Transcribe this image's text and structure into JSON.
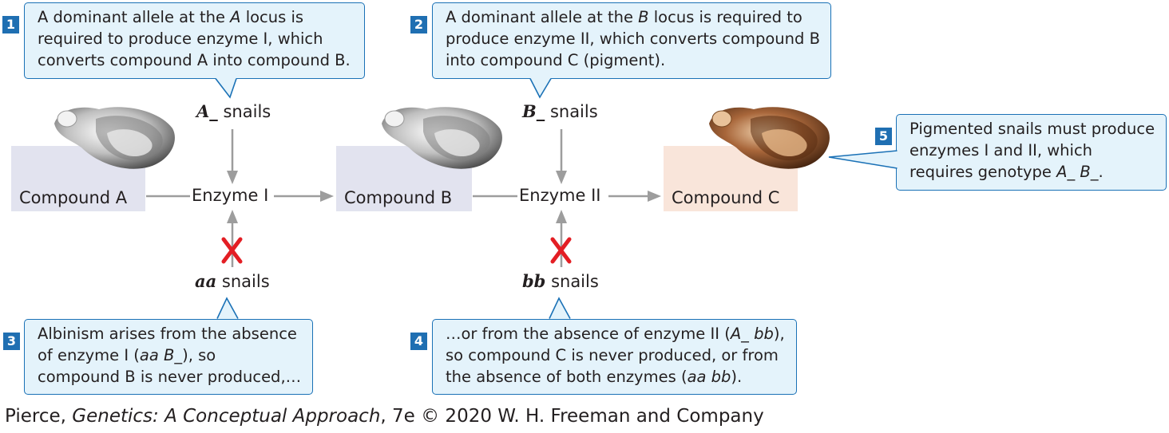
{
  "callouts": [
    {
      "number": "1",
      "segments": [
        {
          "t": "A dominant allele at the "
        },
        {
          "t": "A",
          "i": true
        },
        {
          "t": " locus is required to produce enzyme I, which converts compound A into compound B."
        }
      ]
    },
    {
      "number": "2",
      "segments": [
        {
          "t": "A dominant allele at the "
        },
        {
          "t": "B",
          "i": true
        },
        {
          "t": " locus is required to produce enzyme II, which converts compound B into compound C (pigment)."
        }
      ]
    },
    {
      "number": "3",
      "segments": [
        {
          "t": "Albinism arises from the absence of enzyme I ("
        },
        {
          "t": "aa B_",
          "i": true
        },
        {
          "t": "), so compound B is never produced,…"
        }
      ]
    },
    {
      "number": "4",
      "segments": [
        {
          "t": "…or from the absence of enzyme II ("
        },
        {
          "t": "A_  bb",
          "i": true
        },
        {
          "t": "), so compound C is never produced, or from the absence of both enzymes ("
        },
        {
          "t": "aa bb",
          "i": true
        },
        {
          "t": ")."
        }
      ]
    },
    {
      "number": "5",
      "segments": [
        {
          "t": "Pigmented snails must produce enzymes I and II, which requires genotype "
        },
        {
          "t": "A_ B_",
          "i": true
        },
        {
          "t": "."
        }
      ]
    }
  ],
  "pathway": {
    "compound_a": "Compound A",
    "compound_b": "Compound B",
    "compound_c": "Compound C",
    "enzyme_1": "Enzyme I",
    "enzyme_2": "Enzyme II",
    "a_snails": {
      "genotype": "A_",
      "word": "snails"
    },
    "b_snails": {
      "genotype": "B_",
      "word": "snails"
    },
    "aa_snails": {
      "genotype": "aa",
      "word": "snails"
    },
    "bb_snails": {
      "genotype": "bb",
      "word": "snails"
    }
  },
  "colors": {
    "callout_fill": "#e4f3fb",
    "callout_border": "#1a71b6",
    "badge": "#1f6fb2",
    "arrow": "#9d9d9d",
    "block_x": "#e31e24",
    "compound_ab_fill": "#e2e3ef",
    "compound_c_fill": "#f9e5da"
  },
  "credit": {
    "before": "Pierce, ",
    "title": "Genetics: A Conceptual Approach",
    "after": ", 7e © 2020 W. H. Freeman and Company"
  }
}
